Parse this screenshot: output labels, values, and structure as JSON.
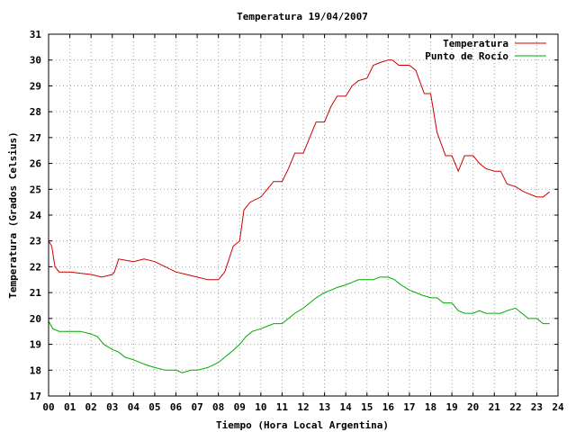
{
  "chart_data": {
    "type": "line",
    "title": "Temperatura 19/04/2007",
    "xlabel": "Tiempo (Hora Local Argentina)",
    "ylabel": "Temperatura (Grados Celsius)",
    "xlim": [
      0,
      24
    ],
    "ylim": [
      17,
      31
    ],
    "x_ticks": [
      0,
      1,
      2,
      3,
      4,
      5,
      6,
      7,
      8,
      9,
      10,
      11,
      12,
      13,
      14,
      15,
      16,
      17,
      18,
      19,
      20,
      21,
      22,
      23,
      24
    ],
    "x_tick_labels": [
      "00",
      "01",
      "02",
      "03",
      "04",
      "05",
      "06",
      "07",
      "08",
      "09",
      "10",
      "11",
      "12",
      "13",
      "14",
      "15",
      "16",
      "17",
      "18",
      "19",
      "20",
      "21",
      "22",
      "23",
      "24"
    ],
    "y_ticks": [
      17,
      18,
      19,
      20,
      21,
      22,
      23,
      24,
      25,
      26,
      27,
      28,
      29,
      30,
      31
    ],
    "y_tick_labels": [
      "17",
      "18",
      "19",
      "20",
      "21",
      "22",
      "23",
      "24",
      "25",
      "26",
      "27",
      "28",
      "29",
      "30",
      "31"
    ],
    "grid": true,
    "legend_position": "top-right",
    "colors": {
      "temperatura": "#cc0000",
      "punto_de_rocio": "#00aa00"
    },
    "series": [
      {
        "name": "Temperatura",
        "color": "#cc0000",
        "x": [
          0,
          0.15,
          0.3,
          0.5,
          1,
          2,
          2.5,
          3,
          3.1,
          3.3,
          4,
          4.5,
          5,
          5.5,
          6,
          6.5,
          7,
          7.5,
          8,
          8.3,
          8.7,
          9,
          9.2,
          9.5,
          10,
          10.3,
          10.6,
          11,
          11.3,
          11.6,
          12,
          12.3,
          12.6,
          13,
          13.3,
          13.6,
          14,
          14.3,
          14.6,
          15,
          15.3,
          15.6,
          16,
          16.2,
          16.5,
          17,
          17.3,
          17.7,
          18,
          18.3,
          18.7,
          19,
          19.3,
          19.6,
          20,
          20.3,
          20.6,
          21,
          21.3,
          21.6,
          22,
          22.4,
          23,
          23.3,
          23.6
        ],
        "y": [
          23,
          22.8,
          22,
          21.8,
          21.8,
          21.7,
          21.6,
          21.7,
          21.8,
          22.3,
          22.2,
          22.3,
          22.2,
          22,
          21.8,
          21.7,
          21.6,
          21.5,
          21.5,
          21.8,
          22.8,
          23,
          24.2,
          24.5,
          24.7,
          25,
          25.3,
          25.3,
          25.8,
          26.4,
          26.4,
          27,
          27.6,
          27.6,
          28.2,
          28.6,
          28.6,
          29,
          29.2,
          29.3,
          29.8,
          29.9,
          30,
          30,
          29.8,
          29.8,
          29.6,
          28.7,
          28.7,
          27.2,
          26.3,
          26.3,
          25.7,
          26.3,
          26.3,
          26,
          25.8,
          25.7,
          25.7,
          25.2,
          25.1,
          24.9,
          24.7,
          24.7,
          24.9
        ]
      },
      {
        "name": "Punto de Rocío",
        "color": "#00aa00",
        "x": [
          0,
          0.2,
          0.5,
          1,
          1.5,
          2,
          2.3,
          2.6,
          3,
          3.3,
          3.6,
          4,
          4.3,
          4.6,
          5,
          5.5,
          6,
          6.3,
          6.7,
          7,
          7.5,
          8,
          8.3,
          8.6,
          9,
          9.3,
          9.6,
          10,
          10.3,
          10.6,
          11,
          11.3,
          11.6,
          12,
          12.3,
          12.6,
          13,
          13.3,
          13.6,
          14,
          14.3,
          14.6,
          15,
          15.3,
          15.6,
          16,
          16.3,
          16.6,
          17,
          17.3,
          17.6,
          18,
          18.3,
          18.6,
          19,
          19.3,
          19.6,
          20,
          20.3,
          20.6,
          21,
          21.3,
          21.6,
          22,
          22.3,
          22.6,
          23,
          23.3,
          23.6
        ],
        "y": [
          19.9,
          19.6,
          19.5,
          19.5,
          19.5,
          19.4,
          19.3,
          19,
          18.8,
          18.7,
          18.5,
          18.4,
          18.3,
          18.2,
          18.1,
          18,
          18,
          17.9,
          18,
          18,
          18.1,
          18.3,
          18.5,
          18.7,
          19,
          19.3,
          19.5,
          19.6,
          19.7,
          19.8,
          19.8,
          20,
          20.2,
          20.4,
          20.6,
          20.8,
          21,
          21.1,
          21.2,
          21.3,
          21.4,
          21.5,
          21.5,
          21.5,
          21.6,
          21.6,
          21.5,
          21.3,
          21.1,
          21,
          20.9,
          20.8,
          20.8,
          20.6,
          20.6,
          20.3,
          20.2,
          20.2,
          20.3,
          20.2,
          20.2,
          20.2,
          20.3,
          20.4,
          20.2,
          20,
          20,
          19.8,
          19.8
        ]
      }
    ]
  }
}
